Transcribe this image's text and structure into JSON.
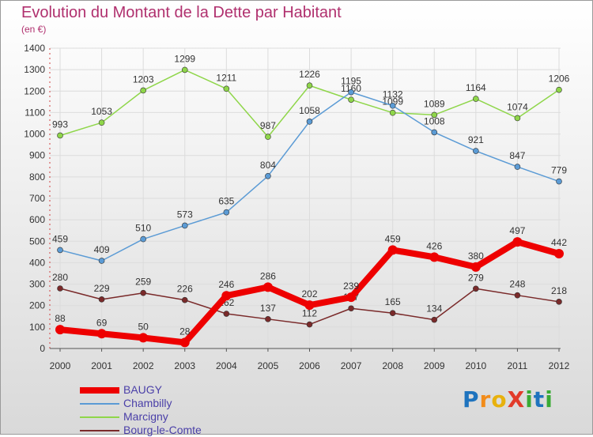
{
  "header": {
    "title": "Evolution du Montant de la Dette par Habitant",
    "subtitle": "(en €)"
  },
  "logo": {
    "text": "ProXiti",
    "letters": [
      {
        "ch": "P",
        "color": "#1e73be"
      },
      {
        "ch": "r",
        "color": "#f28c1a"
      },
      {
        "ch": "o",
        "color": "#e8b10d"
      },
      {
        "ch": "X",
        "color": "#e23b2a"
      },
      {
        "ch": "i",
        "color": "#3aaa35"
      },
      {
        "ch": "t",
        "color": "#1e73be"
      },
      {
        "ch": "i",
        "color": "#3aaa35"
      }
    ]
  },
  "chart_data": {
    "type": "line",
    "title": "Evolution du Montant de la Dette par Habitant",
    "subtitle": "(en €)",
    "x": [
      "2000",
      "2001",
      "2002",
      "2003",
      "2004",
      "2005",
      "2006",
      "2007",
      "2008",
      "2009",
      "2010",
      "2011",
      "2012"
    ],
    "ylim": [
      0,
      1400
    ],
    "yticks": [
      0,
      100,
      200,
      300,
      400,
      500,
      600,
      700,
      800,
      900,
      1000,
      1100,
      1200,
      1300,
      1400
    ],
    "grid": true,
    "legend_position": "bottom-left",
    "series": [
      {
        "name": "Marcigny",
        "color": "#8fd64a",
        "values": [
          993,
          1053,
          1203,
          1299,
          1211,
          987,
          1226,
          1160,
          1099,
          1089,
          1164,
          1074,
          1206
        ]
      },
      {
        "name": "Chambilly",
        "color": "#5b9bd5",
        "values": [
          459,
          409,
          510,
          573,
          635,
          804,
          1058,
          1195,
          1132,
          1008,
          921,
          847,
          779
        ]
      },
      {
        "name": "Bourg-le-Comte",
        "color": "#7a2a2a",
        "values": [
          280,
          229,
          259,
          226,
          162,
          137,
          112,
          187,
          165,
          134,
          279,
          248,
          218
        ]
      },
      {
        "name": "BAUGY",
        "color": "#ee0000",
        "values": [
          88,
          69,
          50,
          28,
          246,
          286,
          202,
          239,
          459,
          426,
          380,
          497,
          442
        ]
      }
    ],
    "legend_order": [
      "BAUGY",
      "Chambilly",
      "Marcigny",
      "Bourg-le-Comte"
    ]
  }
}
